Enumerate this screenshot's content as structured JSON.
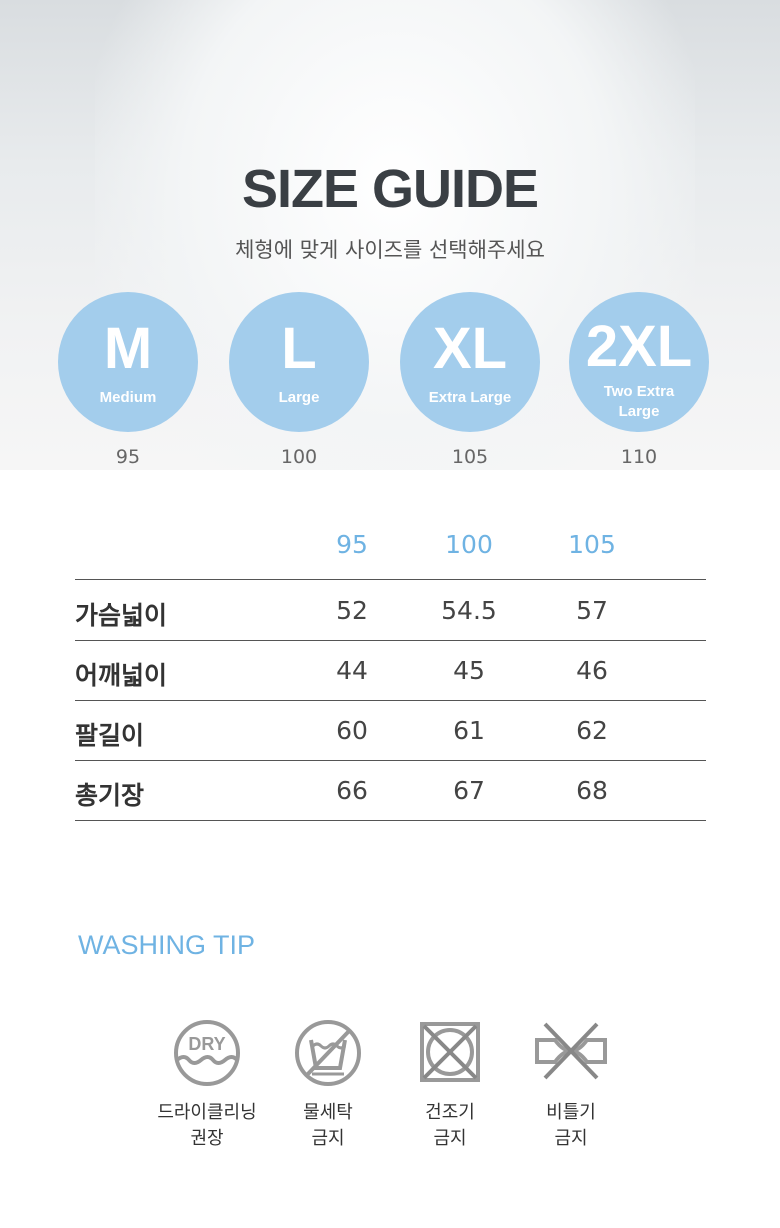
{
  "header": {
    "title": "SIZE GUIDE",
    "subtitle": "체형에 맞게 사이즈를 선택해주세요"
  },
  "sizes": [
    {
      "code": "M",
      "name": "Medium",
      "number": "95"
    },
    {
      "code": "L",
      "name": "Large",
      "number": "100"
    },
    {
      "code": "XL",
      "name": "Extra Large",
      "number": "105"
    },
    {
      "code": "2XL",
      "name_line1": "Two Extra",
      "name_line2": "Large",
      "number": "110"
    }
  ],
  "colors": {
    "accent": "#6fb3e3",
    "circle": "#a3cdec",
    "icon": "#999999"
  },
  "table": {
    "columns": [
      "95",
      "100",
      "105"
    ],
    "rows": [
      {
        "label": "가슴넓이",
        "values": [
          "52",
          "54.5",
          "57"
        ]
      },
      {
        "label": "어깨넓이",
        "values": [
          "44",
          "45",
          "46"
        ]
      },
      {
        "label": "팔길이",
        "values": [
          "60",
          "61",
          "62"
        ]
      },
      {
        "label": "총기장",
        "values": [
          "66",
          "67",
          "68"
        ]
      }
    ]
  },
  "washing": {
    "title": "WASHING TIP",
    "items": [
      {
        "icon": "dry-clean-icon",
        "icon_text": "DRY",
        "line1": "드라이클리닝",
        "line2": "권장"
      },
      {
        "icon": "no-water-wash-icon",
        "line1": "물세탁",
        "line2": "금지"
      },
      {
        "icon": "no-tumble-dry-icon",
        "line1": "건조기",
        "line2": "금지"
      },
      {
        "icon": "no-wring-icon",
        "line1": "비틀기",
        "line2": "금지"
      }
    ]
  }
}
